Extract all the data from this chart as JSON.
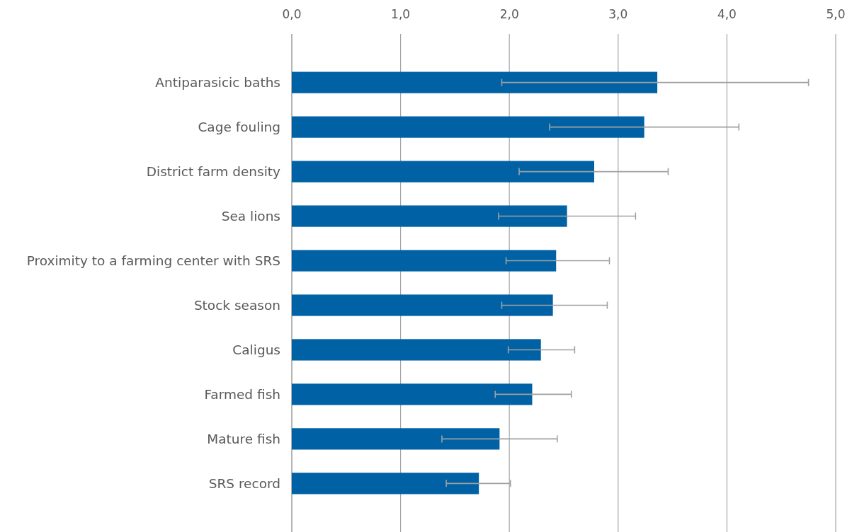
{
  "chart_data": {
    "type": "bar",
    "orientation": "horizontal",
    "categories": [
      "Antiparasicic baths",
      "Cage fouling",
      "District farm density",
      "Sea lions",
      "Proximity to a farming center with SRS",
      "Stock season",
      "Caligus",
      "Farmed fish",
      "Mature fish",
      "SRS record"
    ],
    "values": [
      3.36,
      3.24,
      2.78,
      2.53,
      2.43,
      2.4,
      2.29,
      2.21,
      1.91,
      1.72
    ],
    "errors": [
      [
        1.93,
        4.75
      ],
      [
        2.37,
        4.11
      ],
      [
        2.09,
        3.46
      ],
      [
        1.9,
        3.16
      ],
      [
        1.97,
        2.92
      ],
      [
        1.93,
        2.9
      ],
      [
        1.99,
        2.6
      ],
      [
        1.87,
        2.57
      ],
      [
        1.38,
        2.44
      ],
      [
        1.42,
        2.01
      ]
    ],
    "color": "#0062a5",
    "xlim": [
      0,
      5
    ],
    "xticks": [
      {
        "value": 0,
        "label": "0,0"
      },
      {
        "value": 1,
        "label": "1,0"
      },
      {
        "value": 2,
        "label": "2,0"
      },
      {
        "value": 3,
        "label": "3,0"
      },
      {
        "value": 4,
        "label": "4,0"
      },
      {
        "value": 5,
        "label": "5,0"
      }
    ],
    "grid": "x"
  }
}
